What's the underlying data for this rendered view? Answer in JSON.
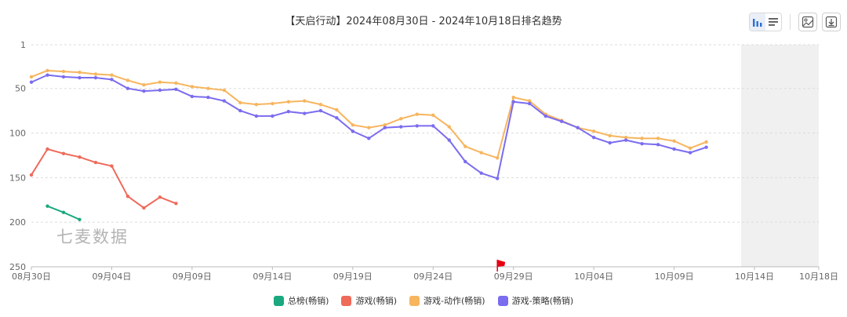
{
  "title": "【天启行动】2024年08月30日 - 2024年10月18日排名趋势",
  "watermark": "七麦数据",
  "toolbar": {
    "view_toggle": [
      "bar-chart-icon",
      "list-icon"
    ],
    "buttons": [
      "image-icon",
      "download-icon"
    ]
  },
  "chart_data": {
    "type": "line",
    "title": "【天启行动】2024年08月30日 - 2024年10月18日排名趋势",
    "xlabel": "",
    "ylabel": "",
    "y_inverted": true,
    "ylim": [
      1,
      250
    ],
    "y_ticks": [
      "1",
      "50",
      "100",
      "150",
      "200",
      "250"
    ],
    "x_start": "2024-08-30",
    "x_end": "2024-10-18",
    "x_ticks": [
      "08月30日",
      "09月04日",
      "09月09日",
      "09月14日",
      "09月19日",
      "09月24日",
      "09月29日",
      "10月04日",
      "10月09日",
      "10月14日",
      "10月18日"
    ],
    "grid": true,
    "shaded_region": {
      "from": "2024-10-14",
      "to": "2024-10-18",
      "color": "#f0f0f0"
    },
    "marker": {
      "date": "2024-09-28",
      "icon": "flag-icon",
      "color": "#e60012"
    },
    "legend_position": "bottom",
    "series": [
      {
        "name": "总榜(畅销)",
        "color": "#1aa87e",
        "points": [
          [
            "2024-08-31",
            182
          ],
          [
            "2024-09-01",
            189
          ],
          [
            "2024-09-02",
            197
          ]
        ]
      },
      {
        "name": "游戏(畅销)",
        "color": "#ee6a5a",
        "points": [
          [
            "2024-08-30",
            147
          ],
          [
            "2024-08-31",
            118
          ],
          [
            "2024-09-01",
            123
          ],
          [
            "2024-09-02",
            127
          ],
          [
            "2024-09-03",
            133
          ],
          [
            "2024-09-04",
            137
          ],
          [
            "2024-09-05",
            171
          ],
          [
            "2024-09-06",
            184
          ],
          [
            "2024-09-07",
            172
          ],
          [
            "2024-09-08",
            179
          ]
        ]
      },
      {
        "name": "游戏-动作(畅销)",
        "color": "#f7b55e",
        "points": [
          [
            "2024-08-30",
            37
          ],
          [
            "2024-08-31",
            30
          ],
          [
            "2024-09-01",
            31
          ],
          [
            "2024-09-02",
            32
          ],
          [
            "2024-09-03",
            34
          ],
          [
            "2024-09-04",
            35
          ],
          [
            "2024-09-05",
            41
          ],
          [
            "2024-09-06",
            46
          ],
          [
            "2024-09-07",
            43
          ],
          [
            "2024-09-08",
            44
          ],
          [
            "2024-09-09",
            48
          ],
          [
            "2024-09-10",
            50
          ],
          [
            "2024-09-11",
            52
          ],
          [
            "2024-09-12",
            66
          ],
          [
            "2024-09-13",
            68
          ],
          [
            "2024-09-14",
            67
          ],
          [
            "2024-09-15",
            65
          ],
          [
            "2024-09-16",
            64
          ],
          [
            "2024-09-17",
            68
          ],
          [
            "2024-09-18",
            74
          ],
          [
            "2024-09-19",
            91
          ],
          [
            "2024-09-20",
            94
          ],
          [
            "2024-09-21",
            91
          ],
          [
            "2024-09-22",
            84
          ],
          [
            "2024-09-23",
            79
          ],
          [
            "2024-09-24",
            80
          ],
          [
            "2024-09-25",
            93
          ],
          [
            "2024-09-26",
            115
          ],
          [
            "2024-09-27",
            122
          ],
          [
            "2024-09-28",
            128
          ],
          [
            "2024-09-29",
            60
          ],
          [
            "2024-09-30",
            64
          ],
          [
            "2024-10-01",
            79
          ],
          [
            "2024-10-02",
            86
          ],
          [
            "2024-10-03",
            94
          ],
          [
            "2024-10-04",
            98
          ],
          [
            "2024-10-05",
            103
          ],
          [
            "2024-10-06",
            105
          ],
          [
            "2024-10-07",
            106
          ],
          [
            "2024-10-08",
            106
          ],
          [
            "2024-10-09",
            109
          ],
          [
            "2024-10-10",
            117
          ],
          [
            "2024-10-11",
            110
          ]
        ]
      },
      {
        "name": "游戏-策略(畅销)",
        "color": "#7b6cf0",
        "points": [
          [
            "2024-08-30",
            43
          ],
          [
            "2024-08-31",
            35
          ],
          [
            "2024-09-01",
            37
          ],
          [
            "2024-09-02",
            38
          ],
          [
            "2024-09-03",
            38
          ],
          [
            "2024-09-04",
            40
          ],
          [
            "2024-09-05",
            50
          ],
          [
            "2024-09-06",
            53
          ],
          [
            "2024-09-07",
            52
          ],
          [
            "2024-09-08",
            51
          ],
          [
            "2024-09-09",
            59
          ],
          [
            "2024-09-10",
            60
          ],
          [
            "2024-09-11",
            64
          ],
          [
            "2024-09-12",
            75
          ],
          [
            "2024-09-13",
            81
          ],
          [
            "2024-09-14",
            81
          ],
          [
            "2024-09-15",
            76
          ],
          [
            "2024-09-16",
            78
          ],
          [
            "2024-09-17",
            75
          ],
          [
            "2024-09-18",
            83
          ],
          [
            "2024-09-19",
            98
          ],
          [
            "2024-09-20",
            106
          ],
          [
            "2024-09-21",
            94
          ],
          [
            "2024-09-22",
            93
          ],
          [
            "2024-09-23",
            92
          ],
          [
            "2024-09-24",
            92
          ],
          [
            "2024-09-25",
            108
          ],
          [
            "2024-09-26",
            132
          ],
          [
            "2024-09-27",
            145
          ],
          [
            "2024-09-28",
            151
          ],
          [
            "2024-09-29",
            65
          ],
          [
            "2024-09-30",
            67
          ],
          [
            "2024-10-01",
            81
          ],
          [
            "2024-10-02",
            87
          ],
          [
            "2024-10-03",
            94
          ],
          [
            "2024-10-04",
            105
          ],
          [
            "2024-10-05",
            111
          ],
          [
            "2024-10-06",
            108
          ],
          [
            "2024-10-07",
            112
          ],
          [
            "2024-10-08",
            113
          ],
          [
            "2024-10-09",
            118
          ],
          [
            "2024-10-10",
            122
          ],
          [
            "2024-10-11",
            116
          ]
        ]
      }
    ]
  }
}
